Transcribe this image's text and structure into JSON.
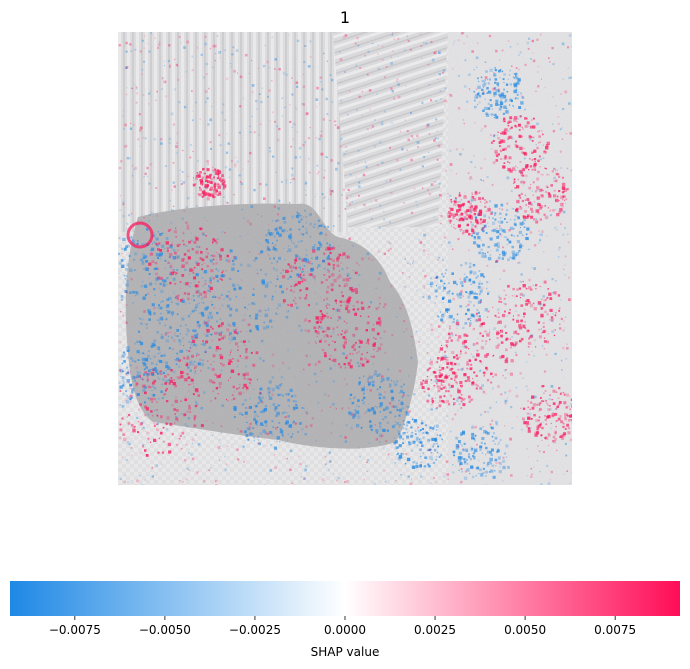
{
  "chart_data": {
    "type": "heatmap",
    "title": "1",
    "colorbar": {
      "label": "SHAP value",
      "range": [
        -0.0093,
        0.0093
      ],
      "ticks": [
        -0.0075,
        -0.005,
        -0.0025,
        0.0,
        0.0025,
        0.005,
        0.0075
      ],
      "tick_labels": [
        "−0.0075",
        "−0.0050",
        "−0.0025",
        "0.0000",
        "0.0025",
        "0.0050",
        "0.0075"
      ],
      "colors": {
        "negative": "#1e88e5",
        "zero": "#ffffff",
        "positive": "#ff0d57"
      }
    },
    "background_image": "grayscale photo of a fabric/textile sample with a darker gray irregular blob region, overlaid with red and blue SHAP attribution speckles",
    "axes_visible": false
  }
}
